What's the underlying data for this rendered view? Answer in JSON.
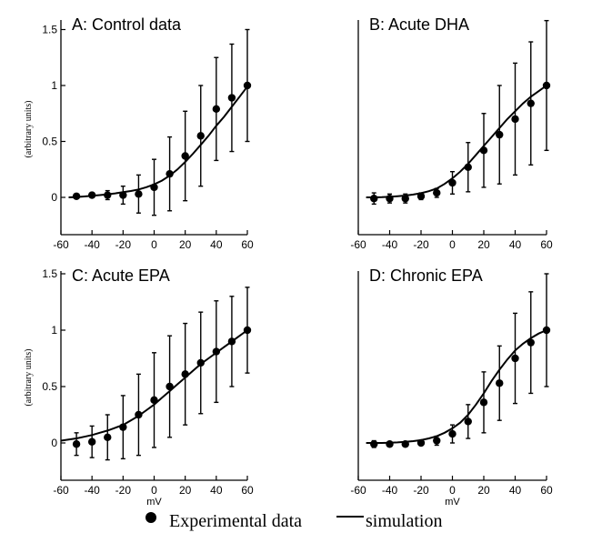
{
  "chart_data": [
    {
      "type": "scatter",
      "title": "A: Control data",
      "ylabel": "(arbitrary units)",
      "xlabel": "",
      "xlim": [
        -60,
        60
      ],
      "ylim": [
        -0.1,
        1.6
      ],
      "xticks": [
        "-60",
        "-40",
        "-20",
        "0",
        "20",
        "40",
        "60"
      ],
      "yticks": [
        "0",
        "0.5",
        "1",
        "1.5"
      ],
      "series": [
        {
          "name": "Experimental data",
          "x": [
            -50,
            -40,
            -30,
            -20,
            -10,
            0,
            10,
            20,
            30,
            40,
            50,
            60
          ],
          "y": [
            0.01,
            0.02,
            0.02,
            0.02,
            0.03,
            0.09,
            0.21,
            0.37,
            0.55,
            0.79,
            0.89,
            1.0
          ],
          "err": [
            0.01,
            0.02,
            0.04,
            0.08,
            0.17,
            0.25,
            0.33,
            0.4,
            0.45,
            0.46,
            0.48,
            0.5
          ]
        },
        {
          "name": "simulation",
          "x": [
            -55,
            -50,
            -45,
            -40,
            -35,
            -30,
            -25,
            -20,
            -15,
            -10,
            -5,
            0,
            5,
            10,
            15,
            20,
            25,
            30,
            35,
            40,
            45,
            50,
            55,
            60
          ],
          "y": [
            0.0,
            0.003,
            0.008,
            0.014,
            0.02,
            0.028,
            0.036,
            0.046,
            0.057,
            0.071,
            0.091,
            0.116,
            0.15,
            0.194,
            0.25,
            0.317,
            0.39,
            0.47,
            0.55,
            0.64,
            0.72,
            0.81,
            0.9,
            0.99
          ]
        }
      ]
    },
    {
      "type": "scatter",
      "title": "B: Acute DHA",
      "ylabel": "",
      "xlabel": "",
      "xlim": [
        -60,
        60
      ],
      "ylim": [
        -0.1,
        1.6
      ],
      "xticks": [
        "-60",
        "-40",
        "-20",
        "0",
        "20",
        "40",
        "60"
      ],
      "yticks": [],
      "series": [
        {
          "name": "Experimental data",
          "x": [
            -50,
            -40,
            -30,
            -20,
            -10,
            0,
            10,
            20,
            30,
            40,
            50,
            60
          ],
          "y": [
            -0.01,
            -0.01,
            -0.01,
            0.01,
            0.04,
            0.13,
            0.27,
            0.42,
            0.56,
            0.7,
            0.84,
            1.0
          ],
          "err": [
            0.05,
            0.04,
            0.04,
            0.03,
            0.04,
            0.1,
            0.22,
            0.33,
            0.44,
            0.5,
            0.55,
            0.58
          ]
        },
        {
          "name": "simulation",
          "x": [
            -55,
            -50,
            -45,
            -40,
            -35,
            -30,
            -25,
            -20,
            -15,
            -10,
            -5,
            0,
            5,
            10,
            15,
            20,
            25,
            30,
            35,
            40,
            45,
            50,
            55,
            60
          ],
          "y": [
            0.0,
            0.0,
            0.002,
            0.005,
            0.01,
            0.016,
            0.025,
            0.037,
            0.055,
            0.08,
            0.12,
            0.17,
            0.23,
            0.3,
            0.38,
            0.46,
            0.54,
            0.62,
            0.7,
            0.77,
            0.84,
            0.9,
            0.95,
            1.0
          ]
        }
      ]
    },
    {
      "type": "scatter",
      "title": "C: Acute EPA",
      "ylabel": "(arbitrary units)",
      "xlabel": "mV",
      "xlim": [
        -60,
        60
      ],
      "ylim": [
        -0.1,
        1.6
      ],
      "xticks": [
        "-60",
        "-40",
        "-20",
        "0",
        "20",
        "40",
        "60"
      ],
      "yticks": [
        "0",
        "0.5",
        "1",
        "1.5"
      ],
      "series": [
        {
          "name": "Experimental data",
          "x": [
            -50,
            -40,
            -30,
            -20,
            -10,
            0,
            10,
            20,
            30,
            40,
            50,
            60
          ],
          "y": [
            -0.01,
            0.01,
            0.05,
            0.14,
            0.25,
            0.38,
            0.5,
            0.61,
            0.71,
            0.81,
            0.9,
            1.0
          ],
          "err": [
            0.1,
            0.14,
            0.2,
            0.28,
            0.36,
            0.42,
            0.45,
            0.45,
            0.45,
            0.45,
            0.4,
            0.38
          ]
        },
        {
          "name": "simulation",
          "x": [
            -60,
            -55,
            -50,
            -45,
            -40,
            -35,
            -30,
            -25,
            -20,
            -15,
            -10,
            -5,
            0,
            5,
            10,
            15,
            20,
            25,
            30,
            35,
            40,
            45,
            50,
            55,
            60
          ],
          "y": [
            0.02,
            0.03,
            0.04,
            0.055,
            0.07,
            0.09,
            0.11,
            0.135,
            0.16,
            0.2,
            0.24,
            0.29,
            0.34,
            0.4,
            0.46,
            0.52,
            0.58,
            0.64,
            0.7,
            0.75,
            0.8,
            0.85,
            0.9,
            0.95,
            1.0
          ]
        }
      ]
    },
    {
      "type": "scatter",
      "title": "D: Chronic EPA",
      "ylabel": "",
      "xlabel": "mV",
      "xlim": [
        -60,
        60
      ],
      "ylim": [
        -0.1,
        1.6
      ],
      "xticks": [
        "-60",
        "-40",
        "-20",
        "0",
        "20",
        "40",
        "60"
      ],
      "yticks": [],
      "series": [
        {
          "name": "Experimental data",
          "x": [
            -50,
            -40,
            -30,
            -20,
            -10,
            0,
            10,
            20,
            30,
            40,
            50,
            60
          ],
          "y": [
            -0.01,
            -0.01,
            -0.01,
            0.0,
            0.02,
            0.08,
            0.19,
            0.36,
            0.53,
            0.75,
            0.89,
            1.0
          ],
          "err": [
            0.03,
            0.02,
            0.02,
            0.02,
            0.04,
            0.08,
            0.15,
            0.27,
            0.33,
            0.4,
            0.45,
            0.5
          ]
        },
        {
          "name": "simulation",
          "x": [
            -55,
            -50,
            -45,
            -40,
            -35,
            -30,
            -25,
            -20,
            -15,
            -10,
            -5,
            0,
            5,
            10,
            15,
            20,
            25,
            30,
            35,
            40,
            45,
            50,
            55,
            60
          ],
          "y": [
            0.0,
            0.0,
            0.0,
            0.002,
            0.005,
            0.01,
            0.016,
            0.025,
            0.04,
            0.06,
            0.09,
            0.13,
            0.18,
            0.25,
            0.34,
            0.44,
            0.55,
            0.65,
            0.74,
            0.82,
            0.88,
            0.93,
            0.97,
            1.0
          ]
        }
      ]
    }
  ],
  "legend": {
    "experimental_label": "Experimental data",
    "simulation_label": "simulation"
  }
}
